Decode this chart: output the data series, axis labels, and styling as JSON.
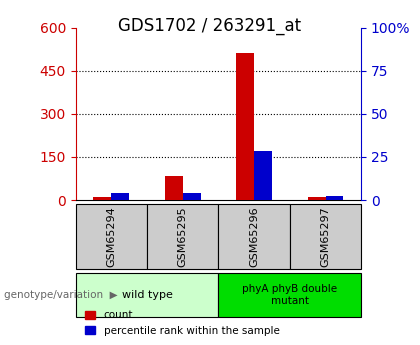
{
  "title": "GDS1702 / 263291_at",
  "samples": [
    "GSM65294",
    "GSM65295",
    "GSM65296",
    "GSM65297"
  ],
  "count_values": [
    10,
    85,
    510,
    10
  ],
  "percentile_values": [
    25,
    25,
    170,
    15
  ],
  "left_ylim": [
    0,
    600
  ],
  "left_yticks": [
    0,
    150,
    300,
    450,
    600
  ],
  "right_ylim": [
    0,
    100
  ],
  "right_yticks": [
    0,
    25,
    50,
    75,
    100
  ],
  "right_yticklabels": [
    "0",
    "25",
    "50",
    "75",
    "100%"
  ],
  "count_color": "#cc0000",
  "percentile_color": "#0000cc",
  "left_tick_color": "#cc0000",
  "right_tick_color": "#0000cc",
  "bar_width": 0.25,
  "xlabel_label": "genotype/variation",
  "legend_count": "count",
  "legend_percentile": "percentile rank within the sample",
  "background_color": "#ffffff",
  "plot_bg_color": "#ffffff",
  "sample_box_color": "#cccccc",
  "group0_color": "#ccffcc",
  "group1_color": "#00dd00",
  "title_fontsize": 12,
  "tick_fontsize": 10
}
